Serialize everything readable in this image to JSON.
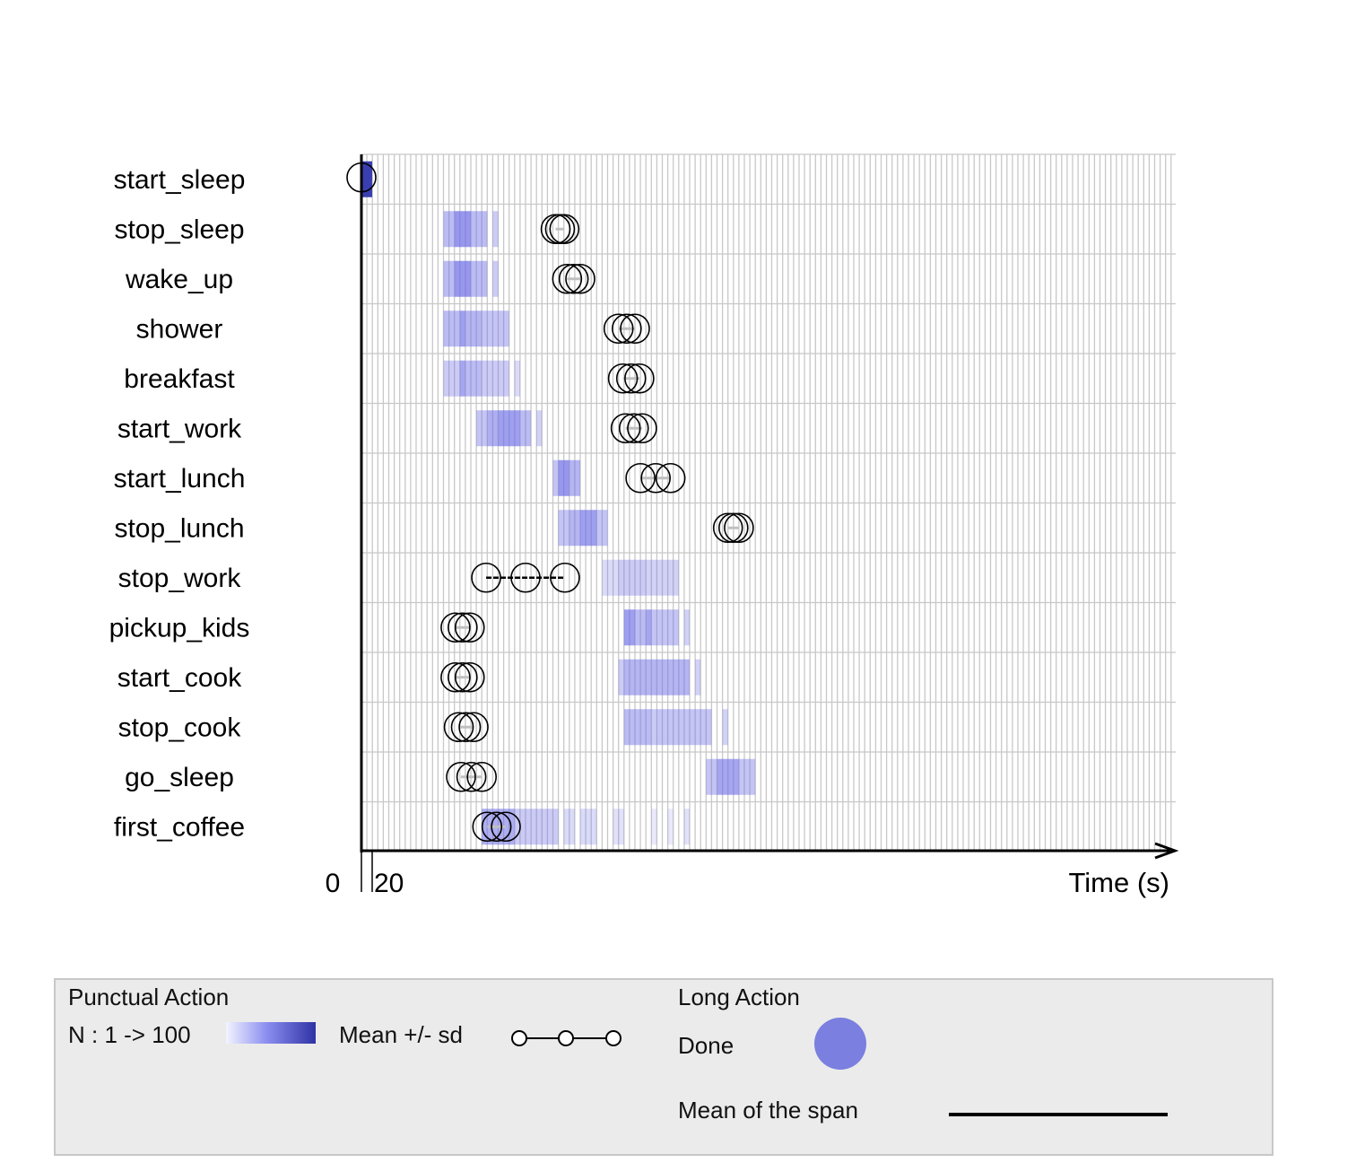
{
  "chart_data": {
    "type": "timeline",
    "xlabel": "Time (s)",
    "x_tick_labels": [
      "0",
      "20"
    ],
    "actions": [
      "start_sleep",
      "stop_sleep",
      "wake_up",
      "shower",
      "breakfast",
      "start_work",
      "start_lunch",
      "stop_lunch",
      "stop_work",
      "pickup_kids",
      "start_cook",
      "stop_cook",
      "go_sleep",
      "first_coffee"
    ],
    "density_color": "#6b6be6",
    "rows": [
      {
        "action": "start_sleep",
        "mean_sd": [
          0,
          0,
          0
        ],
        "segments": []
      },
      {
        "action": "stop_sleep",
        "mean_sd": [
          355,
          363,
          371
        ],
        "segments": [
          [
            150,
            170,
            0.45
          ],
          [
            170,
            200,
            0.7
          ],
          [
            200,
            230,
            0.45
          ],
          [
            240,
            250,
            0.35
          ]
        ]
      },
      {
        "action": "wake_up",
        "mean_sd": [
          376,
          388,
          400
        ],
        "segments": [
          [
            150,
            170,
            0.45
          ],
          [
            170,
            200,
            0.7
          ],
          [
            200,
            230,
            0.45
          ],
          [
            240,
            250,
            0.35
          ]
        ]
      },
      {
        "action": "shower",
        "mean_sd": [
          470,
          485,
          500
        ],
        "segments": [
          [
            150,
            180,
            0.45
          ],
          [
            180,
            190,
            0.65
          ],
          [
            190,
            220,
            0.5
          ],
          [
            220,
            270,
            0.4
          ]
        ]
      },
      {
        "action": "breakfast",
        "mean_sd": [
          478,
          493,
          508
        ],
        "segments": [
          [
            150,
            180,
            0.35
          ],
          [
            180,
            190,
            0.6
          ],
          [
            190,
            220,
            0.45
          ],
          [
            220,
            270,
            0.35
          ],
          [
            280,
            290,
            0.25
          ]
        ]
      },
      {
        "action": "start_work",
        "mean_sd": [
          483,
          498,
          513
        ],
        "segments": [
          [
            210,
            230,
            0.4
          ],
          [
            230,
            250,
            0.55
          ],
          [
            250,
            290,
            0.65
          ],
          [
            290,
            310,
            0.45
          ],
          [
            320,
            330,
            0.3
          ]
        ]
      },
      {
        "action": "start_lunch",
        "mean_sd": [
          510,
          538,
          565
        ],
        "segments": [
          [
            350,
            360,
            0.4
          ],
          [
            360,
            380,
            0.7
          ],
          [
            380,
            400,
            0.5
          ]
        ]
      },
      {
        "action": "stop_lunch",
        "mean_sd": [
          670,
          680,
          690
        ],
        "segments": [
          [
            360,
            380,
            0.4
          ],
          [
            380,
            400,
            0.5
          ],
          [
            400,
            430,
            0.65
          ],
          [
            430,
            450,
            0.4
          ]
        ]
      },
      {
        "action": "stop_work",
        "mean_sd": [
          228,
          300,
          372
        ],
        "segments": [
          [
            440,
            470,
            0.25
          ],
          [
            470,
            520,
            0.35
          ],
          [
            520,
            580,
            0.3
          ]
        ]
      },
      {
        "action": "pickup_kids",
        "mean_sd": [
          172,
          185,
          198
        ],
        "segments": [
          [
            480,
            500,
            0.65
          ],
          [
            500,
            520,
            0.45
          ],
          [
            520,
            530,
            0.6
          ],
          [
            530,
            580,
            0.4
          ],
          [
            590,
            600,
            0.3
          ]
        ]
      },
      {
        "action": "start_cook",
        "mean_sd": [
          172,
          185,
          198
        ],
        "segments": [
          [
            470,
            480,
            0.35
          ],
          [
            480,
            600,
            0.5
          ],
          [
            610,
            620,
            0.3
          ]
        ]
      },
      {
        "action": "stop_cook",
        "mean_sd": [
          178,
          191,
          205
        ],
        "segments": [
          [
            480,
            530,
            0.45
          ],
          [
            530,
            540,
            0.35
          ],
          [
            540,
            640,
            0.4
          ],
          [
            660,
            670,
            0.3
          ]
        ]
      },
      {
        "action": "go_sleep",
        "mean_sd": [
          182,
          201,
          220
        ],
        "segments": [
          [
            630,
            650,
            0.4
          ],
          [
            650,
            690,
            0.6
          ],
          [
            690,
            720,
            0.4
          ]
        ]
      },
      {
        "action": "first_coffee",
        "mean_sd": [
          230,
          247,
          264
        ],
        "segments": [
          [
            220,
            280,
            0.55
          ],
          [
            280,
            360,
            0.35
          ],
          [
            370,
            390,
            0.25
          ],
          [
            400,
            430,
            0.25
          ],
          [
            460,
            480,
            0.2
          ],
          [
            530,
            540,
            0.15
          ],
          [
            560,
            570,
            0.15
          ],
          [
            590,
            600,
            0.2
          ]
        ]
      }
    ]
  },
  "legend": {
    "punctual_title": "Punctual Action",
    "n_label": "N : 1 -> 100",
    "mean_sd_label": "Mean +/- sd",
    "long_title": "Long Action",
    "done_label": "Done",
    "span_label": "Mean of the span",
    "done_color": "#7a7fe0"
  }
}
